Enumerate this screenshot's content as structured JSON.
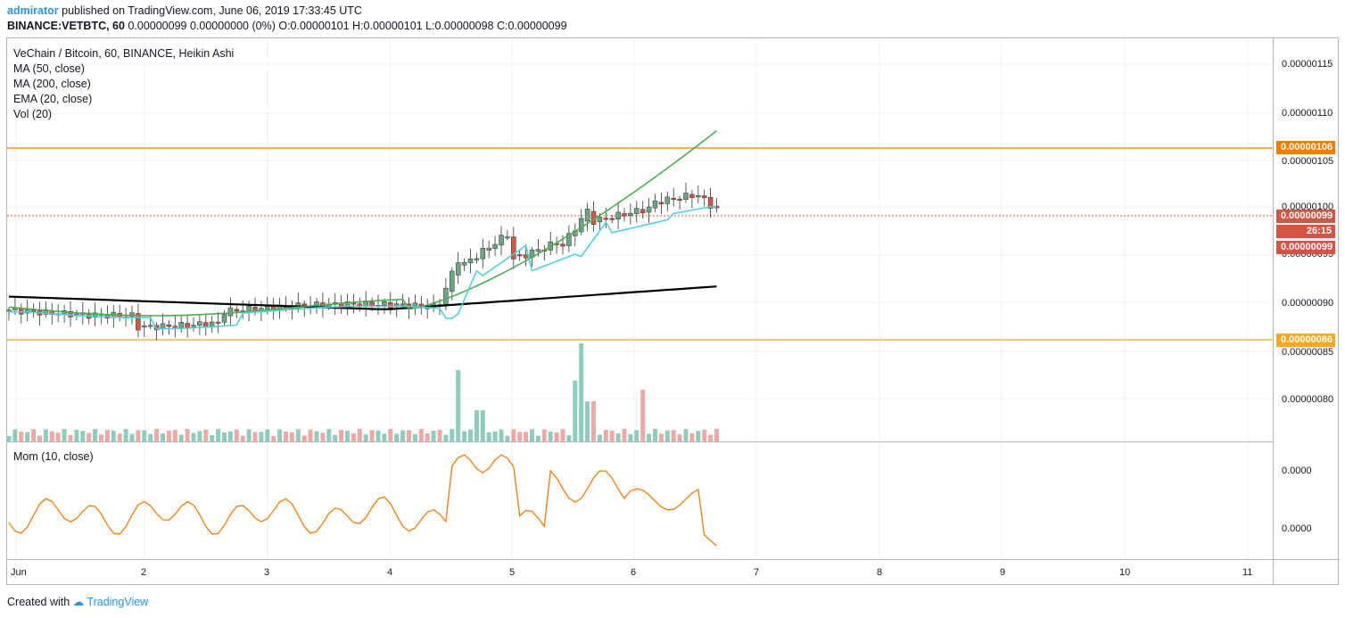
{
  "header": {
    "user": "admirator",
    "published": "published on TradingView.com, June 06, 2019 17:33:45 UTC",
    "symbol": "BINANCE:VETBTC, 60",
    "ohlc": "0.00000099 0.00000000 (0%) O:0.00000101 H:0.00000101 L:0.00000098 C:0.00000099"
  },
  "legend": {
    "title": "VeChain / Bitcoin, 60, BINANCE, Heikin Ashi",
    "ma50": "MA (50, close)",
    "ma200": "MA (200, close)",
    "ema20": "EMA (20, close)",
    "vol": "Vol (20)"
  },
  "mom_legend": "Mom (10, close)",
  "price_axis": {
    "ticks": [
      "0.00000115",
      "0.00000110",
      "0.00000105",
      "0.00000100",
      "0.00000095",
      "0.00000090",
      "0.00000085",
      "0.00000080"
    ],
    "mom_ticks": [
      "0.0000",
      "0.0000"
    ]
  },
  "badges": {
    "resistance": "0.00000106",
    "support": "0.00000086",
    "last": "0.00000099",
    "countdown": "26:15",
    "close": "0.00000099"
  },
  "time_axis": [
    "Jun",
    "2",
    "3",
    "4",
    "5",
    "6",
    "7",
    "8",
    "9",
    "10",
    "11"
  ],
  "footer": {
    "created": "Created with",
    "brand": "TradingView"
  },
  "colors": {
    "up": "#6ba583",
    "down": "#d75442",
    "ma50": "#4caf50",
    "ma200": "#000000",
    "ema20": "#4dd0e1",
    "resistance": "#f57c00",
    "support": "#f9a825",
    "mom": "#f57c00"
  },
  "chart_data": {
    "type": "candlestick",
    "price_range": [
      7.5e-07,
      1.17e-06
    ],
    "levels": {
      "resistance": 1.06e-06,
      "support": 8.6e-07,
      "last": 9.9e-07
    }
  }
}
